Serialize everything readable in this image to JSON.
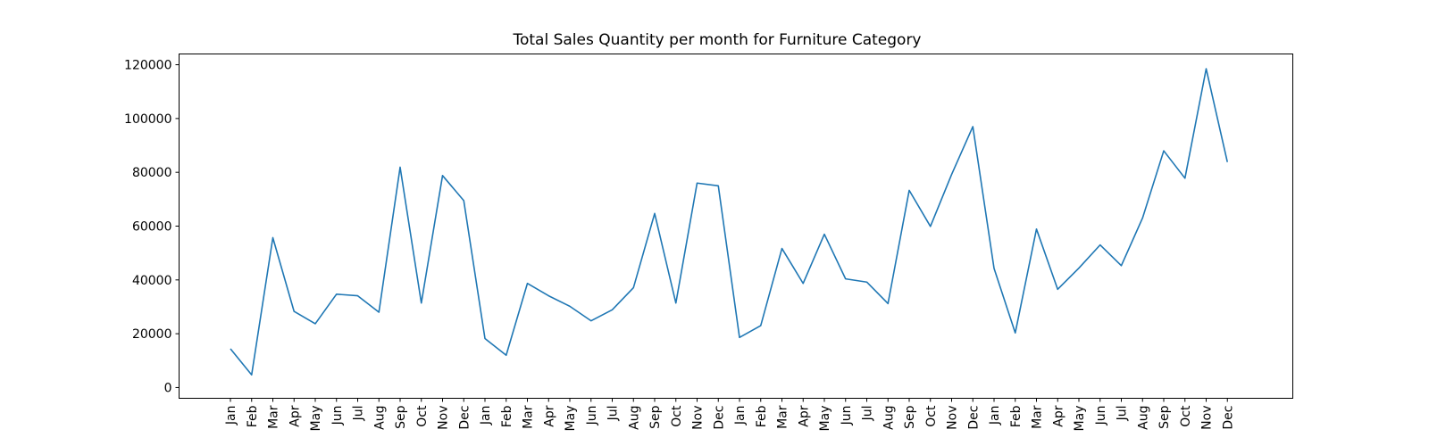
{
  "chart_data": {
    "type": "line",
    "title": "Total Sales Quantity per month for Furniture Category",
    "xlabel": "",
    "ylabel": "",
    "categories": [
      "Jan",
      "Feb",
      "Mar",
      "Apr",
      "May",
      "Jun",
      "Jul",
      "Aug",
      "Sep",
      "Oct",
      "Nov",
      "Dec",
      "Jan",
      "Feb",
      "Mar",
      "Apr",
      "May",
      "Jun",
      "Jul",
      "Aug",
      "Sep",
      "Oct",
      "Nov",
      "Dec",
      "Jan",
      "Feb",
      "Mar",
      "Apr",
      "May",
      "Jun",
      "Jul",
      "Aug",
      "Sep",
      "Oct",
      "Nov",
      "Dec",
      "Jan",
      "Feb",
      "Mar",
      "Apr",
      "May",
      "Jun",
      "Jul",
      "Aug",
      "Sep",
      "Oct",
      "Nov",
      "Dec"
    ],
    "series": [
      {
        "values": [
          14400,
          4700,
          55700,
          28300,
          23700,
          34700,
          34100,
          28000,
          81900,
          31400,
          78800,
          69500,
          18200,
          12000,
          38700,
          34100,
          30200,
          24800,
          28900,
          37100,
          64700,
          31400,
          76000,
          75000,
          18600,
          23000,
          51700,
          38700,
          57000,
          40400,
          39200,
          31200,
          73300,
          59900,
          79200,
          97000,
          44300,
          20300,
          58900,
          36500,
          44400,
          53000,
          45300,
          63000,
          88000,
          77800,
          118500,
          83800
        ],
        "color": "#1f77b4"
      }
    ],
    "yticks": [
      "0",
      "20000",
      "40000",
      "60000",
      "80000",
      "100000",
      "120000"
    ],
    "ylim": [
      -4000,
      124000
    ],
    "grid": false,
    "legend": "none"
  }
}
